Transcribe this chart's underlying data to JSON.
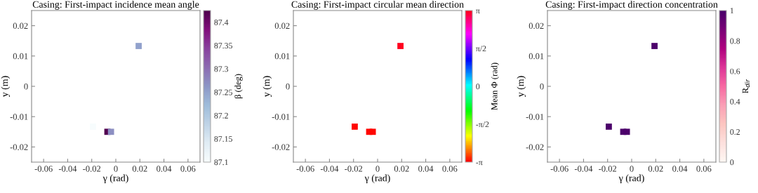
{
  "chart_data": [
    {
      "type": "scatter",
      "title": "Casing: First-impact incidence mean angle",
      "xlabel": "γ (rad)",
      "ylabel": "y (m)",
      "clabel": "β (deg)",
      "marker": "square",
      "grid": false,
      "legend": false,
      "x": [
        -0.019,
        -0.007,
        -0.004,
        0.019
      ],
      "values": [
        -0.0133,
        -0.015,
        -0.015,
        0.0133
      ],
      "cvalues": [
        87.1,
        87.42,
        87.27,
        87.25
      ],
      "xlim": [
        -0.07,
        0.07
      ],
      "ylim": [
        -0.025,
        0.025
      ],
      "xticks": [
        -0.06,
        -0.04,
        -0.02,
        0,
        0.02,
        0.04,
        0.06
      ],
      "yticks": [
        -0.02,
        -0.01,
        0,
        0.01,
        0.02
      ],
      "clim": [
        87.1,
        87.425
      ],
      "cticks": [
        87.1,
        87.15,
        87.2,
        87.25,
        87.3,
        87.35,
        87.4
      ]
    },
    {
      "type": "scatter",
      "title": "Casing: First-impact circular mean direction",
      "xlabel": "γ (rad)",
      "ylabel": "y (m)",
      "clabel": "Mean Φ (rad)",
      "marker": "square",
      "grid": false,
      "legend": false,
      "x": [
        -0.019,
        -0.007,
        -0.004,
        0.019
      ],
      "values": [
        -0.0133,
        -0.015,
        -0.015,
        0.0133
      ],
      "cvalues": [
        -3.1,
        -3.1,
        -3.1,
        3.1
      ],
      "xlim": [
        -0.07,
        0.07
      ],
      "ylim": [
        -0.025,
        0.025
      ],
      "xticks": [
        -0.06,
        -0.04,
        -0.02,
        0,
        0.02,
        0.04,
        0.06
      ],
      "yticks": [
        -0.02,
        -0.01,
        0,
        0.01,
        0.02
      ],
      "clim": [
        -3.1416,
        3.1416
      ],
      "cticks": [
        {
          "value": -3.1416,
          "label": "-π"
        },
        {
          "value": -1.5708,
          "label": "-π/2"
        },
        0,
        {
          "value": 1.5708,
          "label": "π/2"
        },
        {
          "value": 3.1416,
          "label": "π"
        }
      ]
    },
    {
      "type": "scatter",
      "title": "Casing: First-impact direction concentration",
      "xlabel": "γ (rad)",
      "ylabel": "y (m)",
      "clabel": "R$_{dir}$",
      "marker": "square",
      "grid": false,
      "legend": false,
      "x": [
        -0.019,
        -0.007,
        -0.004,
        0.019
      ],
      "values": [
        -0.0133,
        -0.015,
        -0.015,
        0.0133
      ],
      "cvalues": [
        0.99,
        0.99,
        0.99,
        0.99
      ],
      "xlim": [
        -0.07,
        0.07
      ],
      "ylim": [
        -0.025,
        0.025
      ],
      "xticks": [
        -0.06,
        -0.04,
        -0.02,
        0,
        0.02,
        0.04,
        0.06
      ],
      "yticks": [
        -0.02,
        -0.01,
        0,
        0.01,
        0.02
      ],
      "clim": [
        0,
        1
      ],
      "cticks": [
        0,
        0.2,
        0.4,
        0.6,
        0.8,
        1
      ]
    }
  ]
}
